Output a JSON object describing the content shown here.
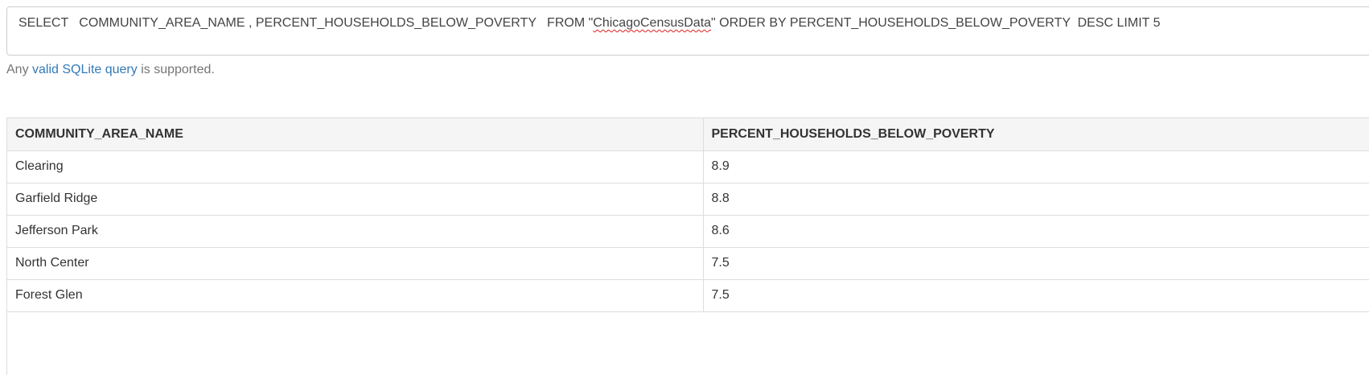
{
  "query": {
    "before_flag": "SELECT   COMMUNITY_AREA_NAME , PERCENT_HOUSEHOLDS_BELOW_POVERTY   FROM \"",
    "flagged_word": "ChicagoCensusData",
    "after_flag": "\" ORDER BY PERCENT_HOUSEHOLDS_BELOW_POVERTY  DESC LIMIT 5"
  },
  "help": {
    "prefix": "Any ",
    "link_text": "valid SQLite query",
    "suffix": " is supported."
  },
  "results": {
    "columns": [
      "COMMUNITY_AREA_NAME",
      "PERCENT_HOUSEHOLDS_BELOW_POVERTY"
    ],
    "rows": [
      [
        "Clearing",
        "8.9"
      ],
      [
        "Garfield Ridge",
        "8.8"
      ],
      [
        "Jefferson Park",
        "8.6"
      ],
      [
        "North Center",
        "7.5"
      ],
      [
        "Forest Glen",
        "7.5"
      ]
    ]
  }
}
